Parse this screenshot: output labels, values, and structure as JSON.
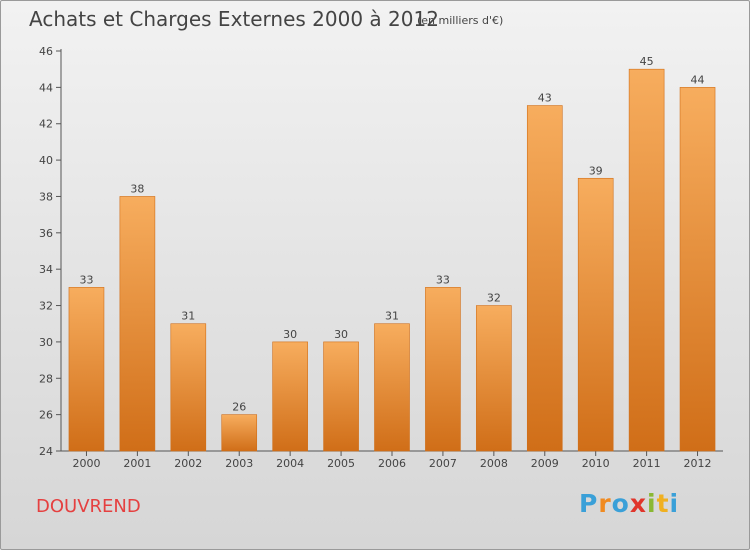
{
  "title": "Achats et Charges Externes 2000 à 2012",
  "subtitle": "(en milliers d'€)",
  "location": "DOUVREND",
  "logo": {
    "letters": [
      "P",
      "r",
      "o",
      "x",
      "i",
      "t",
      "i"
    ],
    "colors": [
      "#3aa0d8",
      "#f08a20",
      "#3aa0d8",
      "#e0352b",
      "#8ab833",
      "#f0b020",
      "#3aa0d8"
    ]
  },
  "colors": {
    "bar": "#f08a2c",
    "bar_light": "#f7ad5e",
    "bar_dark": "#d06e18",
    "text": "#444444",
    "place": "#e54040"
  },
  "chart_data": {
    "type": "bar",
    "title": "Achats et Charges Externes 2000 à 2012",
    "subtitle": "(en milliers d'€)",
    "categories": [
      "2000",
      "2001",
      "2002",
      "2003",
      "2004",
      "2005",
      "2006",
      "2007",
      "2008",
      "2009",
      "2010",
      "2011",
      "2012"
    ],
    "values": [
      33,
      38,
      31,
      26,
      30,
      30,
      31,
      33,
      32,
      43,
      39,
      45,
      44
    ],
    "ylim": [
      24,
      46
    ],
    "yticks": [
      24,
      26,
      28,
      30,
      32,
      34,
      36,
      38,
      40,
      42,
      44,
      46
    ],
    "grid": false,
    "legend": "none",
    "xlabel": "",
    "ylabel": ""
  }
}
